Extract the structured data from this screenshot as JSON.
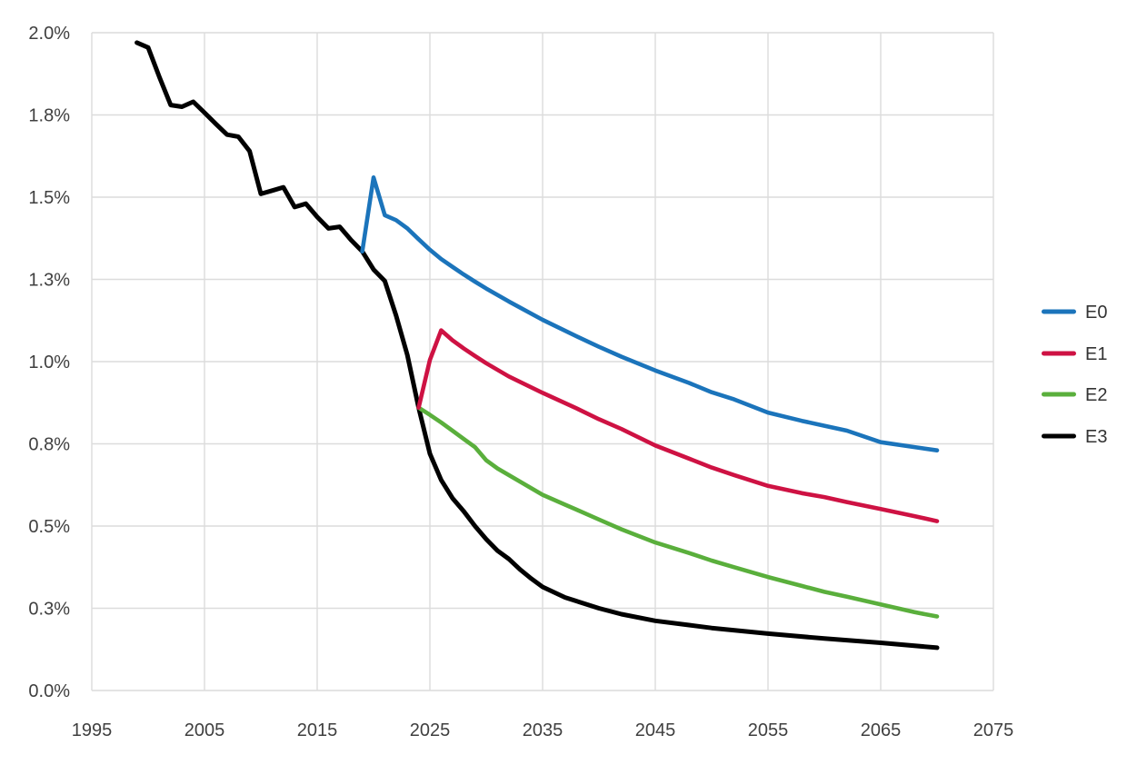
{
  "chart_data": {
    "type": "line",
    "title": "",
    "x_axis": {
      "range": [
        1995,
        2075
      ],
      "ticks": [
        {
          "v": 1995,
          "label": "1995"
        },
        {
          "v": 2005,
          "label": "2005"
        },
        {
          "v": 2015,
          "label": "2015"
        },
        {
          "v": 2025,
          "label": "2025"
        },
        {
          "v": 2035,
          "label": "2035"
        },
        {
          "v": 2045,
          "label": "2045"
        },
        {
          "v": 2055,
          "label": "2055"
        },
        {
          "v": 2065,
          "label": "2065"
        },
        {
          "v": 2075,
          "label": "2075"
        }
      ]
    },
    "y_axis": {
      "range": [
        0,
        2.0
      ],
      "unit": "%",
      "ticks": [
        {
          "v": 0.0,
          "label": "0.0%"
        },
        {
          "v": 0.25,
          "label": "0.3%"
        },
        {
          "v": 0.5,
          "label": "0.5%"
        },
        {
          "v": 0.75,
          "label": "0.8%"
        },
        {
          "v": 1.0,
          "label": "1.0%"
        },
        {
          "v": 1.25,
          "label": "1.3%"
        },
        {
          "v": 1.5,
          "label": "1.5%"
        },
        {
          "v": 1.75,
          "label": "1.8%"
        },
        {
          "v": 2.0,
          "label": "2.0%"
        }
      ]
    },
    "grid": true,
    "legend_position": "right",
    "series": [
      {
        "name": "E0",
        "color": "#1b74bb",
        "points": [
          [
            2019,
            1.335
          ],
          [
            2020,
            1.56
          ],
          [
            2021,
            1.445
          ],
          [
            2022,
            1.43
          ],
          [
            2023,
            1.405
          ],
          [
            2024,
            1.372
          ],
          [
            2025,
            1.34
          ],
          [
            2026,
            1.312
          ],
          [
            2027,
            1.288
          ],
          [
            2028,
            1.265
          ],
          [
            2029,
            1.243
          ],
          [
            2030,
            1.222
          ],
          [
            2032,
            1.183
          ],
          [
            2035,
            1.127
          ],
          [
            2038,
            1.077
          ],
          [
            2040,
            1.045
          ],
          [
            2042,
            1.015
          ],
          [
            2045,
            0.973
          ],
          [
            2048,
            0.935
          ],
          [
            2050,
            0.907
          ],
          [
            2052,
            0.885
          ],
          [
            2055,
            0.845
          ],
          [
            2058,
            0.82
          ],
          [
            2060,
            0.805
          ],
          [
            2062,
            0.79
          ],
          [
            2065,
            0.755
          ],
          [
            2068,
            0.74
          ],
          [
            2070,
            0.73
          ]
        ]
      },
      {
        "name": "E1",
        "color": "#ce1243",
        "points": [
          [
            2024,
            0.86
          ],
          [
            2025,
            1.005
          ],
          [
            2026,
            1.095
          ],
          [
            2027,
            1.065
          ],
          [
            2028,
            1.04
          ],
          [
            2029,
            1.017
          ],
          [
            2030,
            0.995
          ],
          [
            2032,
            0.955
          ],
          [
            2035,
            0.905
          ],
          [
            2038,
            0.858
          ],
          [
            2040,
            0.825
          ],
          [
            2042,
            0.795
          ],
          [
            2045,
            0.745
          ],
          [
            2048,
            0.705
          ],
          [
            2050,
            0.678
          ],
          [
            2052,
            0.655
          ],
          [
            2055,
            0.622
          ],
          [
            2058,
            0.6
          ],
          [
            2060,
            0.588
          ],
          [
            2062,
            0.573
          ],
          [
            2065,
            0.552
          ],
          [
            2068,
            0.53
          ],
          [
            2070,
            0.515
          ]
        ]
      },
      {
        "name": "E2",
        "color": "#5aaf3c",
        "points": [
          [
            2024,
            0.86
          ],
          [
            2025,
            0.838
          ],
          [
            2026,
            0.815
          ],
          [
            2027,
            0.79
          ],
          [
            2028,
            0.765
          ],
          [
            2029,
            0.74
          ],
          [
            2030,
            0.7
          ],
          [
            2031,
            0.675
          ],
          [
            2032,
            0.655
          ],
          [
            2033,
            0.635
          ],
          [
            2034,
            0.615
          ],
          [
            2035,
            0.595
          ],
          [
            2037,
            0.565
          ],
          [
            2038,
            0.55
          ],
          [
            2040,
            0.52
          ],
          [
            2042,
            0.49
          ],
          [
            2045,
            0.45
          ],
          [
            2048,
            0.418
          ],
          [
            2050,
            0.395
          ],
          [
            2052,
            0.375
          ],
          [
            2055,
            0.345
          ],
          [
            2058,
            0.318
          ],
          [
            2060,
            0.3
          ],
          [
            2062,
            0.285
          ],
          [
            2065,
            0.262
          ],
          [
            2068,
            0.238
          ],
          [
            2070,
            0.225
          ]
        ]
      },
      {
        "name": "E3",
        "color": "#000000",
        "points": [
          [
            1999,
            1.97
          ],
          [
            2000,
            1.955
          ],
          [
            2001,
            1.865
          ],
          [
            2002,
            1.78
          ],
          [
            2003,
            1.775
          ],
          [
            2004,
            1.79
          ],
          [
            2005,
            1.757
          ],
          [
            2006,
            1.723
          ],
          [
            2007,
            1.69
          ],
          [
            2008,
            1.684
          ],
          [
            2009,
            1.64
          ],
          [
            2010,
            1.51
          ],
          [
            2011,
            1.52
          ],
          [
            2012,
            1.53
          ],
          [
            2013,
            1.47
          ],
          [
            2014,
            1.48
          ],
          [
            2015,
            1.44
          ],
          [
            2016,
            1.405
          ],
          [
            2017,
            1.41
          ],
          [
            2018,
            1.37
          ],
          [
            2019,
            1.335
          ],
          [
            2020,
            1.28
          ],
          [
            2021,
            1.245
          ],
          [
            2022,
            1.14
          ],
          [
            2023,
            1.02
          ],
          [
            2024,
            0.86
          ],
          [
            2025,
            0.72
          ],
          [
            2026,
            0.64
          ],
          [
            2027,
            0.585
          ],
          [
            2028,
            0.545
          ],
          [
            2029,
            0.5
          ],
          [
            2030,
            0.46
          ],
          [
            2031,
            0.425
          ],
          [
            2032,
            0.4
          ],
          [
            2033,
            0.368
          ],
          [
            2034,
            0.34
          ],
          [
            2035,
            0.315
          ],
          [
            2037,
            0.283
          ],
          [
            2040,
            0.25
          ],
          [
            2042,
            0.232
          ],
          [
            2045,
            0.212
          ],
          [
            2048,
            0.199
          ],
          [
            2050,
            0.19
          ],
          [
            2055,
            0.173
          ],
          [
            2060,
            0.158
          ],
          [
            2065,
            0.145
          ],
          [
            2070,
            0.13
          ]
        ]
      }
    ],
    "colors": {
      "grid": "#dcdcdc",
      "axis_text": "#3f3f3f",
      "legend_text": "#333333",
      "background": "#ffffff"
    }
  }
}
